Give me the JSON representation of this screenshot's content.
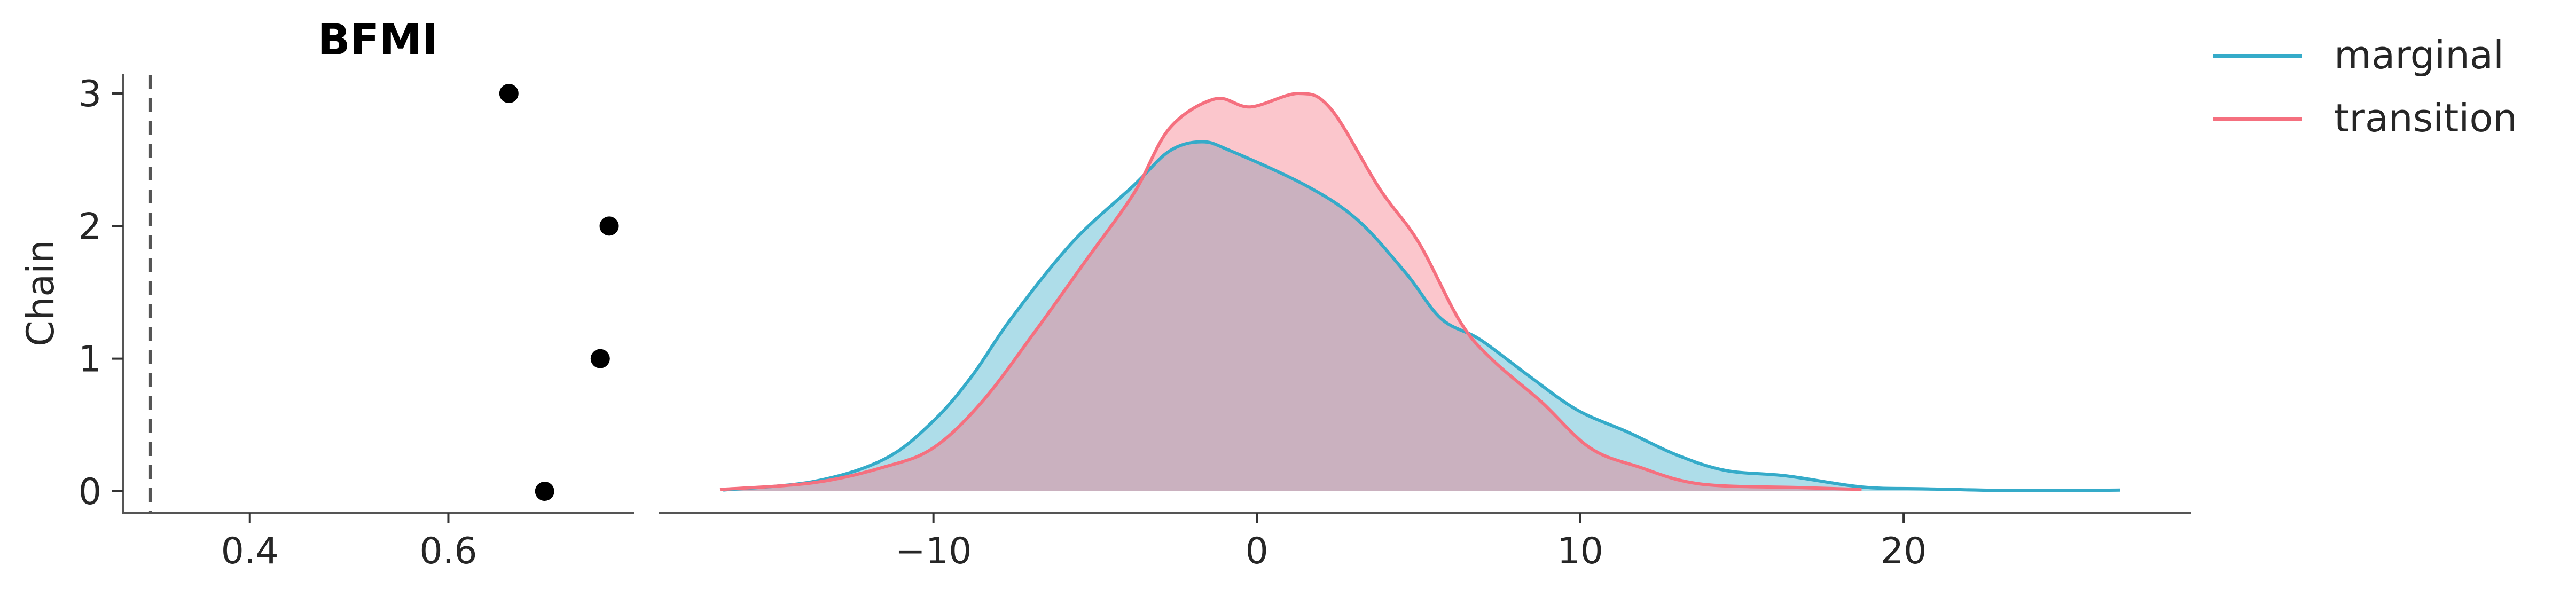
{
  "chart_data": [
    {
      "type": "scatter",
      "title": "BFMI",
      "xlabel": "",
      "ylabel": "Chain",
      "xlim": [
        0.271,
        0.787
      ],
      "ylim": [
        -0.15,
        3.15
      ],
      "xticks": [
        "0.4",
        "0.6"
      ],
      "xtick_values": [
        0.4,
        0.6
      ],
      "yticks": [
        "0",
        "1",
        "2",
        "3"
      ],
      "ytick_values": [
        0,
        1,
        2,
        3
      ],
      "reference_line": {
        "x": 0.3,
        "style": "dashed",
        "color": "#555555"
      },
      "points": [
        {
          "chain": 0,
          "bfmi": 0.697
        },
        {
          "chain": 1,
          "bfmi": 0.753
        },
        {
          "chain": 2,
          "bfmi": 0.762
        },
        {
          "chain": 3,
          "bfmi": 0.661
        }
      ],
      "point_color": "#000000",
      "grid": false
    },
    {
      "type": "area",
      "xlabel": "",
      "ylabel": "",
      "xlim": [
        -18.5,
        28.9
      ],
      "xticks": [
        "−10",
        "0",
        "10",
        "20"
      ],
      "xtick_values": [
        -10,
        0,
        10,
        20
      ],
      "y_axis_visible": false,
      "legend_position": "top-right outside",
      "grid": false,
      "series": [
        {
          "name": "marginal",
          "color": "#35abc9",
          "x": [
            -16.5,
            -13.7,
            -11.5,
            -10,
            -8.8,
            -7.6,
            -5.7,
            -3.8,
            -2.7,
            -1.7,
            -0.8,
            1.5,
            3.1,
            4.6,
            5.7,
            6.9,
            8.4,
            9.9,
            11.5,
            13.0,
            14.5,
            16.4,
            18.7,
            20.6,
            23.6,
            26.7
          ],
          "y": [
            0.0002,
            0.0016,
            0.0053,
            0.0115,
            0.0189,
            0.0282,
            0.0407,
            0.05,
            0.0556,
            0.0571,
            0.0556,
            0.05,
            0.0444,
            0.0357,
            0.0282,
            0.0248,
            0.0189,
            0.0133,
            0.0096,
            0.0059,
            0.0034,
            0.0025,
            0.0007,
            0.0004,
            0.0001,
            0.0002
          ]
        },
        {
          "name": "transition",
          "color": "#f5707f",
          "x": [
            -16.6,
            -13.7,
            -11.5,
            -10,
            -8.5,
            -6.9,
            -5.3,
            -3.8,
            -2.7,
            -1.3,
            -0.2,
            1.3,
            2.3,
            3.8,
            5.0,
            6.3,
            7.3,
            8.8,
            10.3,
            11.8,
            13.7,
            16.8,
            18.7
          ],
          "y": [
            0.0003,
            0.0014,
            0.004,
            0.0071,
            0.0146,
            0.0258,
            0.0376,
            0.0487,
            0.0593,
            0.0641,
            0.0628,
            0.065,
            0.0624,
            0.0494,
            0.0407,
            0.0276,
            0.0214,
            0.0146,
            0.0071,
            0.004,
            0.0012,
            0.0006,
            0.0003
          ]
        }
      ]
    }
  ]
}
